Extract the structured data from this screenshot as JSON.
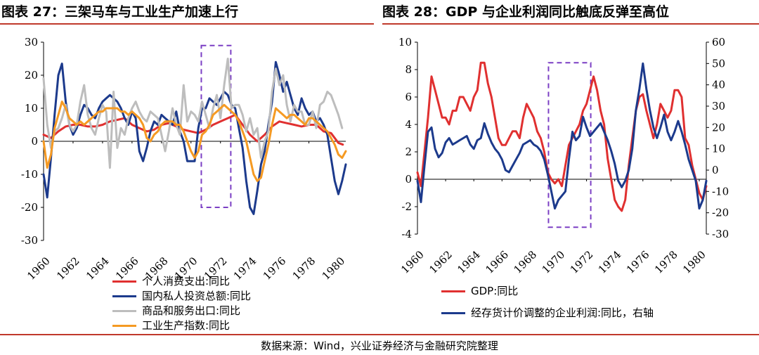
{
  "titles": {
    "left": "图表 27：三架马车与工业生产加速上行",
    "right": "图表 28：GDP 与企业利润同比触底反弹至高位"
  },
  "source": "数据来源：Wind，兴业证券经济与金融研究院整理",
  "colors": {
    "red": "#e03030",
    "navy": "#1c3a8c",
    "gray": "#bdbdbd",
    "orange": "#f59a23",
    "purple": "#7b3fc4",
    "rule": "#c0392b"
  },
  "chart_data": [
    {
      "type": "line",
      "id": "left",
      "xlim": [
        1960,
        1980.5
      ],
      "ylim": [
        -30,
        30
      ],
      "yticks": [
        -30,
        -20,
        -10,
        0,
        10,
        20,
        30
      ],
      "xticks": [
        1960,
        1962,
        1964,
        1966,
        1968,
        1970,
        1972,
        1974,
        1976,
        1978,
        1980
      ],
      "highlight": {
        "x": [
          1970.7,
          1972.7
        ],
        "y": [
          -20,
          29
        ]
      },
      "series": [
        {
          "name": "个人消费支出:同比",
          "color": "red",
          "x": [
            1960,
            1960.5,
            1961,
            1961.5,
            1962,
            1962.5,
            1963,
            1963.5,
            1964,
            1964.5,
            1965,
            1965.5,
            1966,
            1966.5,
            1967,
            1967.5,
            1968,
            1968.5,
            1969,
            1969.5,
            1970,
            1970.5,
            1971,
            1971.5,
            1972,
            1972.5,
            1973,
            1973.5,
            1974,
            1974.5,
            1975,
            1975.5,
            1976,
            1976.5,
            1977,
            1977.5,
            1978,
            1978.5,
            1979,
            1979.5,
            1980,
            1980.3
          ],
          "y": [
            2,
            1,
            3,
            4.5,
            5,
            5,
            4.5,
            4.5,
            5,
            6,
            6.5,
            7,
            5,
            4,
            3,
            3.5,
            5,
            5.5,
            4.5,
            3.5,
            3,
            2.5,
            3.5,
            5,
            6,
            7,
            8,
            5,
            2,
            0,
            2,
            4.5,
            6,
            5.5,
            5,
            4.5,
            5,
            5,
            3,
            2.5,
            -0.5,
            -1
          ]
        },
        {
          "name": "国内私人投资总额:同比",
          "color": "navy",
          "x": [
            1960,
            1960.25,
            1960.5,
            1960.75,
            1961,
            1961.25,
            1961.5,
            1961.75,
            1962,
            1962.25,
            1962.5,
            1962.75,
            1963,
            1963.25,
            1963.5,
            1963.75,
            1964,
            1964.25,
            1964.5,
            1964.75,
            1965,
            1965.25,
            1965.5,
            1965.75,
            1966,
            1966.25,
            1966.5,
            1966.75,
            1967,
            1967.25,
            1967.5,
            1967.75,
            1968,
            1968.25,
            1968.5,
            1968.75,
            1969,
            1969.25,
            1969.5,
            1969.75,
            1970,
            1970.25,
            1970.5,
            1970.75,
            1971,
            1971.25,
            1971.5,
            1971.75,
            1972,
            1972.25,
            1972.5,
            1972.75,
            1973,
            1973.25,
            1973.5,
            1973.75,
            1974,
            1974.25,
            1974.5,
            1974.75,
            1975,
            1975.25,
            1975.5,
            1975.75,
            1976,
            1976.25,
            1976.5,
            1976.75,
            1977,
            1977.25,
            1977.5,
            1977.75,
            1978,
            1978.25,
            1978.5,
            1978.75,
            1979,
            1979.25,
            1979.5,
            1979.75,
            1980,
            1980.25,
            1980.5
          ],
          "y": [
            -10,
            -17,
            -5,
            8,
            20,
            23.5,
            12,
            5,
            2,
            4,
            8,
            11,
            10,
            8,
            7,
            10,
            12,
            13,
            14,
            13,
            12,
            10,
            7,
            5,
            9,
            7,
            -3,
            -6,
            -2,
            3,
            6,
            5,
            8,
            7,
            6,
            5,
            9,
            3,
            0,
            -6,
            -6,
            -6,
            4,
            10,
            10,
            13,
            12,
            11,
            13,
            15,
            14,
            11,
            10,
            4,
            -2,
            -12,
            -20,
            -22,
            -15,
            -7,
            -3,
            5,
            12,
            24,
            20,
            15,
            18,
            14,
            10,
            8,
            13,
            10,
            8,
            9,
            6,
            7,
            5,
            2,
            -5,
            -12,
            -16,
            -12,
            -7
          ]
        },
        {
          "name": "商品和服务出口:同比",
          "color": "gray",
          "x": [
            1960,
            1960.25,
            1960.5,
            1960.75,
            1961,
            1961.25,
            1961.5,
            1961.75,
            1962,
            1962.25,
            1962.5,
            1962.75,
            1963,
            1963.25,
            1963.5,
            1963.75,
            1964,
            1964.25,
            1964.5,
            1964.75,
            1965,
            1965.25,
            1965.5,
            1965.75,
            1966,
            1966.25,
            1966.5,
            1966.75,
            1967,
            1967.25,
            1967.5,
            1967.75,
            1968,
            1968.25,
            1968.5,
            1968.75,
            1969,
            1969.25,
            1969.5,
            1969.75,
            1970,
            1970.25,
            1970.5,
            1970.75,
            1971,
            1971.25,
            1971.5,
            1971.75,
            1972,
            1972.25,
            1972.5,
            1972.75,
            1973,
            1973.25,
            1973.5,
            1973.75,
            1974,
            1974.25,
            1974.5,
            1974.75,
            1975,
            1975.25,
            1975.5,
            1975.75,
            1976,
            1976.25,
            1976.5,
            1976.75,
            1977,
            1977.25,
            1977.5,
            1977.75,
            1978,
            1978.25,
            1978.5,
            1978.75,
            1979,
            1979.25,
            1979.5,
            1979.75,
            1980,
            1980.25
          ],
          "y": [
            19,
            5,
            -2,
            3,
            4,
            7,
            11,
            5,
            3,
            5,
            12,
            17,
            8,
            4,
            2,
            7,
            11,
            9,
            -8,
            15,
            -2,
            4,
            2,
            7,
            10,
            12,
            9,
            7,
            6,
            9,
            8,
            7,
            2,
            -3,
            3,
            10,
            5,
            2,
            17,
            6,
            9,
            8,
            6,
            12,
            8,
            4,
            10,
            14,
            7,
            17,
            25,
            10,
            11,
            11,
            8,
            3,
            7,
            2,
            4,
            -5,
            0,
            3,
            15,
            22,
            17,
            20,
            11,
            6,
            11,
            9,
            9,
            5,
            5,
            9,
            4,
            11,
            12,
            15,
            14,
            11,
            8,
            4
          ]
        },
        {
          "name": "工业生产指数:同比",
          "color": "orange",
          "x": [
            1960,
            1960.25,
            1960.5,
            1960.75,
            1961,
            1961.25,
            1961.5,
            1961.75,
            1962,
            1962.25,
            1962.5,
            1962.75,
            1963,
            1963.25,
            1963.5,
            1963.75,
            1964,
            1964.25,
            1964.5,
            1964.75,
            1965,
            1965.25,
            1965.5,
            1965.75,
            1966,
            1966.25,
            1966.5,
            1966.75,
            1967,
            1967.25,
            1967.5,
            1967.75,
            1968,
            1968.25,
            1968.5,
            1968.75,
            1969,
            1969.25,
            1969.5,
            1969.75,
            1970,
            1970.25,
            1970.5,
            1970.75,
            1971,
            1971.25,
            1971.5,
            1971.75,
            1972,
            1972.25,
            1972.5,
            1972.75,
            1973,
            1973.25,
            1973.5,
            1973.75,
            1974,
            1974.25,
            1974.5,
            1974.75,
            1975,
            1975.25,
            1975.5,
            1975.75,
            1976,
            1976.25,
            1976.5,
            1976.75,
            1977,
            1977.25,
            1977.5,
            1977.75,
            1978,
            1978.25,
            1978.5,
            1978.75,
            1979,
            1979.25,
            1979.5,
            1979.75,
            1980,
            1980.25,
            1980.5
          ],
          "y": [
            0,
            -8,
            -4,
            4,
            8,
            12,
            10,
            7,
            6,
            5,
            6,
            5,
            6,
            7,
            8,
            9,
            9,
            10,
            10,
            10,
            10,
            9,
            9,
            8,
            9,
            8,
            7,
            5,
            1,
            0,
            2,
            3,
            5,
            6,
            6,
            6,
            5,
            5,
            3,
            0,
            -3,
            -5,
            -3,
            2,
            3,
            5,
            8,
            9,
            10,
            11,
            10,
            9,
            8,
            6,
            3,
            0,
            -5,
            -10,
            -12,
            -11,
            -6,
            -1,
            5,
            10,
            9,
            8,
            7,
            8,
            8,
            7,
            6,
            5,
            7,
            7,
            6,
            5,
            4,
            3,
            1,
            -1,
            -4,
            -5,
            -3
          ]
        }
      ]
    },
    {
      "type": "line",
      "id": "right",
      "xlim": [
        1960,
        1980.5
      ],
      "ylim": [
        -4,
        10
      ],
      "y2lim": [
        -30,
        60
      ],
      "yticks": [
        -4,
        -2,
        0,
        2,
        4,
        6,
        8,
        10
      ],
      "y2ticks": [
        -30,
        -20,
        -10,
        0,
        10,
        20,
        30,
        40,
        50,
        60
      ],
      "xticks": [
        1960,
        1962,
        1964,
        1966,
        1968,
        1970,
        1972,
        1974,
        1976,
        1978,
        1980
      ],
      "highlight": {
        "x": [
          1969.3,
          1972.3
        ],
        "y": [
          -3.5,
          8.5
        ]
      },
      "series": [
        {
          "name": "GDP:同比",
          "color": "red",
          "axis": "left",
          "x": [
            1960,
            1960.25,
            1960.5,
            1960.75,
            1961,
            1961.25,
            1961.5,
            1961.75,
            1962,
            1962.25,
            1962.5,
            1962.75,
            1963,
            1963.25,
            1963.5,
            1963.75,
            1964,
            1964.25,
            1964.5,
            1964.75,
            1965,
            1965.25,
            1965.5,
            1965.75,
            1966,
            1966.25,
            1966.5,
            1966.75,
            1967,
            1967.25,
            1967.5,
            1967.75,
            1968,
            1968.25,
            1968.5,
            1968.75,
            1969,
            1969.25,
            1969.5,
            1969.75,
            1970,
            1970.25,
            1970.5,
            1970.75,
            1971,
            1971.25,
            1971.5,
            1971.75,
            1972,
            1972.25,
            1972.5,
            1972.75,
            1973,
            1973.25,
            1973.5,
            1973.75,
            1974,
            1974.25,
            1974.5,
            1974.75,
            1975,
            1975.25,
            1975.5,
            1975.75,
            1976,
            1976.25,
            1976.5,
            1976.75,
            1977,
            1977.25,
            1977.5,
            1977.75,
            1978,
            1978.25,
            1978.5,
            1978.75,
            1979,
            1979.25,
            1979.5,
            1979.75,
            1980,
            1980.25,
            1980.5
          ],
          "y": [
            0.5,
            -0.5,
            2,
            4.5,
            7.5,
            6.5,
            5.5,
            4.5,
            4.5,
            4,
            5,
            5,
            6,
            6,
            5.5,
            5,
            6,
            6.5,
            8.5,
            8.5,
            7,
            6,
            4.5,
            3,
            2.5,
            2.5,
            3,
            3.5,
            3.5,
            3,
            4.5,
            5.5,
            5,
            4.5,
            3.5,
            3,
            2,
            0.5,
            0,
            -0.3,
            0,
            -0.5,
            1,
            2.5,
            3,
            3.5,
            4,
            5,
            5.5,
            6.5,
            7.5,
            6.5,
            5,
            4,
            1.5,
            0,
            -1.5,
            -2,
            -2.3,
            -1.5,
            1,
            3,
            5,
            6,
            6.2,
            5,
            4,
            3,
            4,
            5.5,
            5,
            4.5,
            5,
            6.5,
            6.5,
            6,
            3,
            2.5,
            1,
            0,
            -1,
            -1.5,
            -0.5
          ]
        },
        {
          "name": "经存货计价调整的企业利润:同比，右轴",
          "color": "navy",
          "axis": "right",
          "x": [
            1960,
            1960.25,
            1960.5,
            1960.75,
            1961,
            1961.25,
            1961.5,
            1961.75,
            1962,
            1962.25,
            1962.5,
            1962.75,
            1963,
            1963.25,
            1963.5,
            1963.75,
            1964,
            1964.25,
            1964.5,
            1964.75,
            1965,
            1965.25,
            1965.5,
            1965.75,
            1966,
            1966.25,
            1966.5,
            1966.75,
            1967,
            1967.25,
            1967.5,
            1967.75,
            1968,
            1968.25,
            1968.5,
            1968.75,
            1969,
            1969.25,
            1969.5,
            1969.75,
            1970,
            1970.25,
            1970.5,
            1970.75,
            1971,
            1971.25,
            1971.5,
            1971.75,
            1972,
            1972.25,
            1972.5,
            1972.75,
            1973,
            1973.25,
            1973.5,
            1973.75,
            1974,
            1974.25,
            1974.5,
            1974.75,
            1975,
            1975.25,
            1975.5,
            1975.75,
            1976,
            1976.25,
            1976.5,
            1976.75,
            1977,
            1977.25,
            1977.5,
            1977.75,
            1978,
            1978.25,
            1978.5,
            1978.75,
            1979,
            1979.25,
            1979.5,
            1979.75,
            1980,
            1980.25,
            1980.5
          ],
          "y": [
            -5,
            -15,
            2,
            18,
            20,
            10,
            6,
            8,
            13,
            15,
            12,
            13,
            14,
            15,
            16,
            12,
            10,
            14,
            15,
            22,
            17,
            13,
            10,
            8,
            5,
            0,
            -1,
            2,
            5,
            8,
            12,
            13,
            14,
            12,
            11,
            9,
            5,
            -2,
            -10,
            -18,
            -14,
            -12,
            -10,
            5,
            18,
            14,
            16,
            25,
            20,
            16,
            18,
            20,
            22,
            18,
            14,
            9,
            3,
            -5,
            -8,
            -5,
            0,
            10,
            28,
            38,
            50,
            38,
            28,
            20,
            15,
            20,
            26,
            18,
            14,
            18,
            23,
            18,
            12,
            5,
            0,
            -5,
            -18,
            -14,
            -5
          ]
        }
      ]
    }
  ]
}
